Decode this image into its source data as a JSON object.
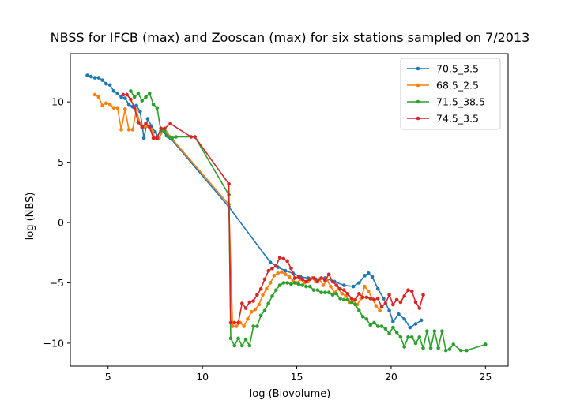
{
  "chart_data": {
    "type": "line",
    "title": "NBSS for IFCB (max) and Zooscan (max) for six stations sampled on  7/2013",
    "xlabel": "log (Biovolume)",
    "ylabel": "log (NBS)",
    "xlim": [
      3,
      26.2
    ],
    "ylim": [
      -11.9,
      14
    ],
    "xticks": [
      5,
      10,
      15,
      20,
      25
    ],
    "yticks": [
      -10,
      -5,
      0,
      5,
      10
    ],
    "grid": false,
    "legend_position": "top-right",
    "series": [
      {
        "name": "70.5_3.5",
        "color": "#1f77b4",
        "points": [
          [
            3.9,
            12.2
          ],
          [
            4.1,
            12.1
          ],
          [
            4.3,
            12.0
          ],
          [
            4.5,
            12.0
          ],
          [
            4.7,
            11.8
          ],
          [
            4.9,
            11.5
          ],
          [
            5.1,
            11.4
          ],
          [
            5.3,
            10.9
          ],
          [
            5.5,
            10.7
          ],
          [
            5.7,
            10.4
          ],
          [
            5.9,
            10.3
          ],
          [
            6.1,
            9.8
          ],
          [
            6.3,
            9.6
          ],
          [
            6.5,
            9.7
          ],
          [
            6.7,
            9.2
          ],
          [
            6.9,
            7.0
          ],
          [
            7.1,
            8.6
          ],
          [
            7.3,
            8.0
          ],
          [
            7.5,
            7.5
          ],
          [
            7.7,
            7.0
          ],
          [
            7.9,
            7.6
          ],
          [
            8.1,
            7.2
          ],
          [
            8.3,
            7.0
          ],
          [
            11.4,
            1.3
          ],
          [
            13.6,
            -3.3
          ],
          [
            14.0,
            -3.7
          ],
          [
            14.4,
            -4.0
          ],
          [
            14.8,
            -4.2
          ],
          [
            15.2,
            -4.5
          ],
          [
            15.6,
            -4.6
          ],
          [
            16.0,
            -4.7
          ],
          [
            16.5,
            -4.6
          ],
          [
            17.0,
            -4.9
          ],
          [
            17.5,
            -5.2
          ],
          [
            18.0,
            -5.3
          ],
          [
            18.3,
            -5.0
          ],
          [
            18.6,
            -4.4
          ],
          [
            18.8,
            -4.2
          ],
          [
            19.0,
            -4.5
          ],
          [
            19.3,
            -5.5
          ],
          [
            19.6,
            -6.3
          ],
          [
            19.9,
            -7.3
          ],
          [
            20.1,
            -8.2
          ],
          [
            20.4,
            -7.6
          ],
          [
            20.7,
            -8.0
          ],
          [
            21.0,
            -8.7
          ],
          [
            21.3,
            -8.4
          ],
          [
            21.6,
            -8.1
          ]
        ]
      },
      {
        "name": "68.5_2.5",
        "color": "#ff7f0e",
        "points": [
          [
            4.3,
            10.6
          ],
          [
            4.5,
            10.4
          ],
          [
            4.7,
            9.7
          ],
          [
            4.9,
            9.9
          ],
          [
            5.1,
            9.8
          ],
          [
            5.3,
            9.5
          ],
          [
            5.5,
            9.5
          ],
          [
            5.7,
            7.7
          ],
          [
            5.9,
            9.4
          ],
          [
            6.1,
            7.7
          ],
          [
            6.3,
            7.7
          ],
          [
            6.5,
            9.3
          ],
          [
            6.7,
            8.2
          ],
          [
            6.9,
            7.9
          ],
          [
            7.1,
            8.0
          ],
          [
            7.3,
            7.7
          ],
          [
            7.5,
            7.0
          ],
          [
            7.7,
            7.0
          ],
          [
            8.0,
            7.8
          ],
          [
            8.3,
            7.1
          ],
          [
            11.4,
            1.5
          ],
          [
            11.6,
            -8.6
          ],
          [
            11.8,
            -8.6
          ],
          [
            12.0,
            -8.3
          ],
          [
            12.2,
            -8.6
          ],
          [
            12.4,
            -8.0
          ],
          [
            12.6,
            -7.4
          ],
          [
            12.8,
            -7.2
          ],
          [
            13.0,
            -6.8
          ],
          [
            13.2,
            -6.0
          ],
          [
            13.4,
            -5.5
          ],
          [
            13.6,
            -5.0
          ],
          [
            13.8,
            -4.4
          ],
          [
            14.0,
            -4.2
          ],
          [
            14.2,
            -4.1
          ],
          [
            14.4,
            -4.3
          ],
          [
            14.6,
            -4.5
          ],
          [
            14.8,
            -4.8
          ],
          [
            15.0,
            -5.0
          ],
          [
            15.2,
            -4.7
          ],
          [
            15.4,
            -5.0
          ],
          [
            15.6,
            -4.9
          ],
          [
            15.8,
            -4.6
          ],
          [
            16.0,
            -4.9
          ],
          [
            16.2,
            -4.7
          ],
          [
            16.4,
            -5.2
          ],
          [
            16.6,
            -4.8
          ],
          [
            16.8,
            -5.3
          ],
          [
            17.0,
            -5.8
          ],
          [
            17.2,
            -5.5
          ],
          [
            17.4,
            -5.9
          ],
          [
            17.6,
            -6.1
          ],
          [
            17.8,
            -6.6
          ],
          [
            18.0,
            -6.5
          ],
          [
            18.2,
            -6.8
          ],
          [
            18.4,
            -6.3
          ],
          [
            18.6,
            -5.3
          ],
          [
            18.8,
            -5.7
          ],
          [
            19.0,
            -6.3
          ],
          [
            19.2,
            -6.9
          ],
          [
            19.4,
            -7.3
          ]
        ]
      },
      {
        "name": "71.5_38.5",
        "color": "#2ca02c",
        "points": [
          [
            6.2,
            10.9
          ],
          [
            6.4,
            10.4
          ],
          [
            6.6,
            10.7
          ],
          [
            6.8,
            10.1
          ],
          [
            7.0,
            10.4
          ],
          [
            7.2,
            10.7
          ],
          [
            7.4,
            9.8
          ],
          [
            7.6,
            9.5
          ],
          [
            7.8,
            7.6
          ],
          [
            8.0,
            7.6
          ],
          [
            8.2,
            7.1
          ],
          [
            8.4,
            7.0
          ],
          [
            8.6,
            7.1
          ],
          [
            9.6,
            7.1
          ],
          [
            11.4,
            2.3
          ],
          [
            11.5,
            -9.6
          ],
          [
            11.7,
            -10.2
          ],
          [
            11.9,
            -9.6
          ],
          [
            12.1,
            -10.2
          ],
          [
            12.3,
            -9.7
          ],
          [
            12.5,
            -10.2
          ],
          [
            12.7,
            -8.6
          ],
          [
            12.9,
            -8.6
          ],
          [
            13.1,
            -7.7
          ],
          [
            13.3,
            -7.3
          ],
          [
            13.5,
            -6.7
          ],
          [
            13.7,
            -6.1
          ],
          [
            13.9,
            -5.6
          ],
          [
            14.1,
            -5.2
          ],
          [
            14.3,
            -5.0
          ],
          [
            14.5,
            -5.0
          ],
          [
            14.7,
            -5.1
          ],
          [
            14.9,
            -5.0
          ],
          [
            15.1,
            -5.1
          ],
          [
            15.3,
            -5.2
          ],
          [
            15.5,
            -5.3
          ],
          [
            15.7,
            -5.3
          ],
          [
            15.9,
            -5.6
          ],
          [
            16.1,
            -5.6
          ],
          [
            16.3,
            -5.8
          ],
          [
            16.5,
            -5.8
          ],
          [
            16.7,
            -5.8
          ],
          [
            16.9,
            -6.0
          ],
          [
            17.1,
            -5.9
          ],
          [
            17.3,
            -6.3
          ],
          [
            17.5,
            -6.4
          ],
          [
            17.7,
            -6.4
          ],
          [
            17.9,
            -6.6
          ],
          [
            18.1,
            -6.8
          ],
          [
            18.3,
            -7.3
          ],
          [
            18.5,
            -7.8
          ],
          [
            18.7,
            -8.0
          ],
          [
            18.9,
            -8.5
          ],
          [
            19.1,
            -8.3
          ],
          [
            19.3,
            -8.6
          ],
          [
            19.5,
            -8.6
          ],
          [
            19.7,
            -8.8
          ],
          [
            19.9,
            -9.2
          ],
          [
            20.1,
            -8.7
          ],
          [
            20.3,
            -9.1
          ],
          [
            20.5,
            -9.5
          ],
          [
            20.7,
            -10.3
          ],
          [
            20.9,
            -9.5
          ],
          [
            21.1,
            -9.5
          ],
          [
            21.3,
            -10.0
          ],
          [
            21.5,
            -9.5
          ],
          [
            21.7,
            -10.4
          ],
          [
            21.9,
            -9.0
          ],
          [
            22.1,
            -10.4
          ],
          [
            22.3,
            -9.0
          ],
          [
            22.5,
            -10.4
          ],
          [
            22.7,
            -9.0
          ],
          [
            22.9,
            -10.6
          ],
          [
            23.1,
            -10.5
          ],
          [
            23.3,
            -10.1
          ],
          [
            23.7,
            -10.6
          ],
          [
            24.0,
            -10.6
          ],
          [
            25.0,
            -10.1
          ]
        ]
      },
      {
        "name": "74.5_3.5",
        "color": "#d62728",
        "points": [
          [
            5.8,
            10.6
          ],
          [
            6.0,
            10.6
          ],
          [
            6.2,
            10.2
          ],
          [
            6.4,
            9.5
          ],
          [
            6.6,
            8.3
          ],
          [
            6.8,
            7.9
          ],
          [
            7.0,
            8.2
          ],
          [
            7.2,
            7.9
          ],
          [
            7.4,
            7.0
          ],
          [
            7.6,
            7.0
          ],
          [
            7.8,
            7.8
          ],
          [
            8.0,
            7.8
          ],
          [
            8.3,
            8.2
          ],
          [
            9.4,
            7.1
          ],
          [
            9.6,
            7.1
          ],
          [
            11.4,
            3.2
          ],
          [
            11.5,
            -8.3
          ],
          [
            11.7,
            -8.3
          ],
          [
            11.9,
            -8.3
          ],
          [
            12.1,
            -6.7
          ],
          [
            12.3,
            -7.1
          ],
          [
            12.5,
            -6.6
          ],
          [
            12.7,
            -6.5
          ],
          [
            12.9,
            -6.0
          ],
          [
            13.1,
            -5.5
          ],
          [
            13.3,
            -4.7
          ],
          [
            13.5,
            -4.0
          ],
          [
            13.7,
            -3.8
          ],
          [
            13.9,
            -3.6
          ],
          [
            14.1,
            -2.9
          ],
          [
            14.3,
            -3.0
          ],
          [
            14.5,
            -3.2
          ],
          [
            14.7,
            -3.8
          ],
          [
            14.9,
            -4.6
          ],
          [
            15.1,
            -4.5
          ],
          [
            15.3,
            -4.7
          ],
          [
            15.5,
            -4.9
          ],
          [
            15.7,
            -4.7
          ],
          [
            15.9,
            -4.6
          ],
          [
            16.1,
            -4.9
          ],
          [
            16.3,
            -4.6
          ],
          [
            16.5,
            -4.8
          ],
          [
            16.7,
            -4.3
          ],
          [
            16.9,
            -4.9
          ],
          [
            17.1,
            -5.2
          ],
          [
            17.3,
            -5.5
          ],
          [
            17.5,
            -5.6
          ],
          [
            17.7,
            -5.9
          ],
          [
            17.9,
            -6.3
          ],
          [
            18.1,
            -6.4
          ],
          [
            18.3,
            -5.9
          ],
          [
            18.5,
            -6.2
          ],
          [
            18.7,
            -6.2
          ],
          [
            18.9,
            -6.3
          ],
          [
            19.1,
            -6.4
          ],
          [
            19.3,
            -6.3
          ],
          [
            19.5,
            -7.0
          ],
          [
            19.7,
            -6.7
          ],
          [
            19.9,
            -6.0
          ],
          [
            20.1,
            -6.8
          ],
          [
            20.3,
            -6.4
          ],
          [
            20.5,
            -6.6
          ],
          [
            20.7,
            -6.1
          ],
          [
            20.9,
            -5.6
          ],
          [
            21.1,
            -5.7
          ],
          [
            21.3,
            -6.6
          ],
          [
            21.5,
            -7.1
          ],
          [
            21.7,
            -6.0
          ]
        ]
      }
    ]
  }
}
